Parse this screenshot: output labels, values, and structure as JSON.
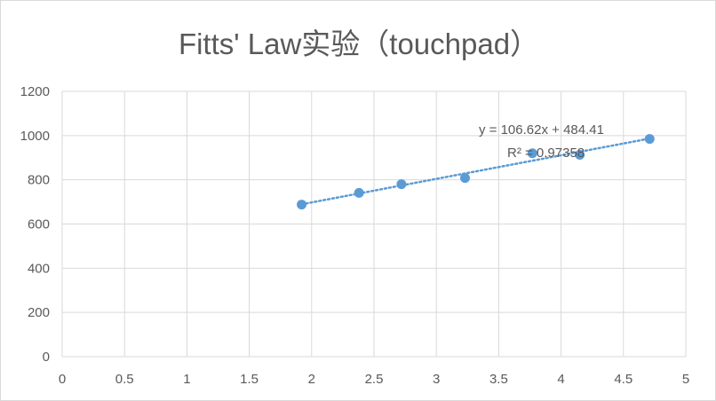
{
  "chart_data": {
    "type": "scatter",
    "title": "Fitts' Law实验（touchpad）",
    "xlabel": "",
    "ylabel": "",
    "xlim": [
      0,
      5
    ],
    "ylim": [
      0,
      1200
    ],
    "x_ticks": [
      "0",
      "0.5",
      "1",
      "1.5",
      "2",
      "2.5",
      "3",
      "3.5",
      "4",
      "4.5",
      "5"
    ],
    "y_ticks": [
      "0",
      "200",
      "400",
      "600",
      "800",
      "1000",
      "1200"
    ],
    "grid": true,
    "legend": "none",
    "series": [
      {
        "color": "#5b9bd5",
        "points": [
          {
            "x": 1.92,
            "y": 688
          },
          {
            "x": 2.38,
            "y": 741
          },
          {
            "x": 2.72,
            "y": 780
          },
          {
            "x": 3.23,
            "y": 808
          },
          {
            "x": 3.77,
            "y": 920
          },
          {
            "x": 4.15,
            "y": 913
          },
          {
            "x": 4.71,
            "y": 985
          }
        ],
        "trendline": {
          "type": "linear",
          "slope": 106.62,
          "intercept": 484.41,
          "equation": "y = 106.62x + 484.41",
          "r_squared": "R² = 0.97358",
          "x_range": [
            1.92,
            4.71
          ]
        }
      }
    ]
  }
}
